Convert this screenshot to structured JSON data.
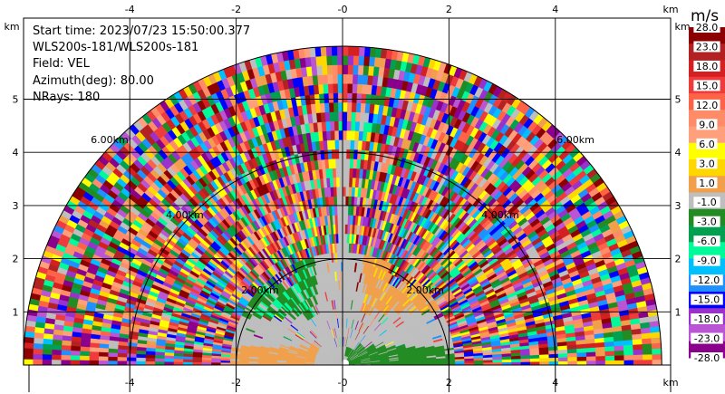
{
  "info": {
    "start_time": "Start time: 2023/07/23 15:50:00.377",
    "instrument": "WLS200s-181/WLS200s-181",
    "field": "Field: VEL",
    "azimuth": "Azimuth(deg): 80.00",
    "nrays": "NRays: 180"
  },
  "colorbar": {
    "unit": "m/s",
    "labels": [
      "28.0",
      "23.0",
      "18.0",
      "15.0",
      "12.0",
      "9.0",
      "6.0",
      "3.0",
      "1.0",
      "-1.0",
      "-3.0",
      "-6.0",
      "-9.0",
      "-12.0",
      "-15.0",
      "-18.0",
      "-23.0",
      "-28.0"
    ],
    "colors": [
      "#8b0000",
      "#b22222",
      "#d42020",
      "#ee3b3b",
      "#ff6347",
      "#ff8c69",
      "#ffa07a",
      "#ffff00",
      "#ffd700",
      "#f0a04b",
      "#bebebe",
      "#228b22",
      "#00a050",
      "#00fa9a",
      "#00bfff",
      "#1e90ff",
      "#0000ff",
      "#9932cc",
      "#ba55d3",
      "#8b008b"
    ]
  },
  "chart_data": {
    "type": "heatmap",
    "title": "",
    "xlabel": "km",
    "ylabel": "km",
    "xlim": [
      -6,
      6
    ],
    "ylim": [
      0,
      6
    ],
    "xticks": [
      "-4",
      "-2",
      "-0",
      "2",
      "4"
    ],
    "xtick_values": [
      -4,
      -2,
      0,
      2,
      4
    ],
    "yticks": [
      "1",
      "2",
      "3",
      "4",
      "5"
    ],
    "ytick_values": [
      1,
      2,
      3,
      4,
      5
    ],
    "range_ring_labels": [
      {
        "r_km": 2,
        "text": "2.00km"
      },
      {
        "r_km": 4,
        "text": "4.00km"
      },
      {
        "r_km": 6,
        "text": "6.00km"
      }
    ],
    "max_range_km": 6,
    "nrays": 180,
    "azimuth_deg": 80,
    "field": "VEL",
    "unit": "m/s"
  }
}
